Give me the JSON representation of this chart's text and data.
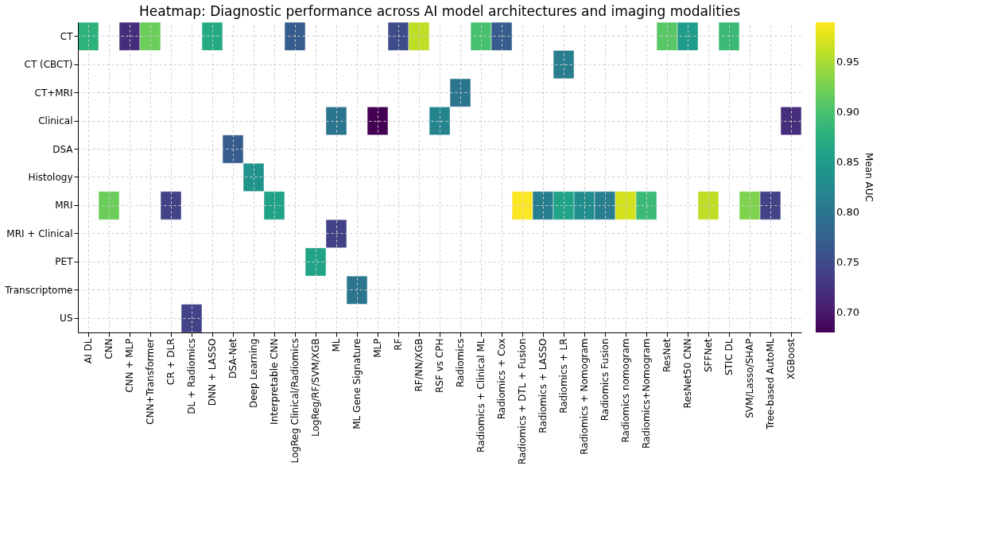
{
  "chart_data": {
    "type": "heatmap",
    "title": "Heatmap: Diagnostic performance across AI model architectures and imaging modalities",
    "clabel": "Mean AUC",
    "clim": [
      0.68,
      0.99
    ],
    "cticks": [
      {
        "value": 0.7,
        "label": "0.70"
      },
      0.75,
      {
        "value": 0.8,
        "label": "0.80"
      },
      0.85,
      {
        "value": 0.9,
        "label": "0.90"
      },
      0.95
    ],
    "grid": true,
    "categories": [
      "AI DL",
      "CNN",
      "CNN + MLP",
      "CNN+Transformer",
      "CR + DLR",
      "DL + Radiomics",
      "DNN + LASSO",
      "DSA-Net",
      "Deep Learning",
      "Interpretable CNN",
      "LogReg Clinical/Radiomics",
      "LogReg/RF/SVM/XGB",
      "ML",
      "ML Gene Signature",
      "MLP",
      "RF",
      "RF/NN/XGB",
      "RSF vs CPH",
      "Radiomics",
      "Radiomics + Clinical ML",
      "Radiomics + Cox",
      "Radiomics + DTL + Fusion",
      "Radiomics + LASSO",
      "Radiomics + LR",
      "Radiomics + Nomogram",
      "Radiomics Fusion",
      "Radiomics nomogram",
      "Radiomics+Nomogram",
      "ResNet",
      "ResNet50 CNN",
      "SFFNet",
      "STIC DL",
      "SVM/Lasso/SHAP",
      "Tree-based AutoML",
      "XGBoost"
    ],
    "y_categories": [
      "CT",
      "CT (CBCT)",
      "CT+MRI",
      "Clinical",
      "DSA",
      "Histology",
      "MRI",
      "MRI + Clinical",
      "PET",
      "Transcriptome",
      "US"
    ],
    "cells": [
      [
        0.88,
        null,
        0.72,
        0.92,
        null,
        null,
        0.87,
        null,
        null,
        null,
        0.77,
        null,
        null,
        null,
        null,
        0.75,
        0.96,
        null,
        null,
        0.9,
        0.77,
        null,
        null,
        null,
        null,
        null,
        null,
        null,
        0.91,
        0.85,
        null,
        0.89,
        null,
        null,
        null
      ],
      [
        null,
        null,
        null,
        null,
        null,
        null,
        null,
        null,
        null,
        null,
        null,
        null,
        null,
        null,
        null,
        null,
        null,
        null,
        null,
        null,
        null,
        null,
        null,
        0.81,
        null,
        null,
        null,
        null,
        null,
        null,
        null,
        null,
        null,
        null,
        null
      ],
      [
        null,
        null,
        null,
        null,
        null,
        null,
        null,
        null,
        null,
        null,
        null,
        null,
        null,
        null,
        null,
        null,
        null,
        null,
        0.8,
        null,
        null,
        null,
        null,
        null,
        null,
        null,
        null,
        null,
        null,
        null,
        null,
        null,
        null,
        null,
        null
      ],
      [
        null,
        null,
        null,
        null,
        null,
        null,
        null,
        null,
        null,
        null,
        null,
        null,
        0.8,
        null,
        0.68,
        null,
        null,
        0.82,
        null,
        null,
        null,
        null,
        null,
        null,
        null,
        null,
        null,
        null,
        null,
        null,
        null,
        null,
        null,
        null,
        0.72
      ],
      [
        null,
        null,
        null,
        null,
        null,
        null,
        null,
        0.77,
        null,
        null,
        null,
        null,
        null,
        null,
        null,
        null,
        null,
        null,
        null,
        null,
        null,
        null,
        null,
        null,
        null,
        null,
        null,
        null,
        null,
        null,
        null,
        null,
        null,
        null,
        null
      ],
      [
        null,
        null,
        null,
        null,
        null,
        null,
        null,
        null,
        0.84,
        null,
        null,
        null,
        null,
        null,
        null,
        null,
        null,
        null,
        null,
        null,
        null,
        null,
        null,
        null,
        null,
        null,
        null,
        null,
        null,
        null,
        null,
        null,
        null,
        null,
        null
      ],
      [
        null,
        0.92,
        null,
        null,
        0.74,
        null,
        null,
        null,
        null,
        0.86,
        null,
        null,
        null,
        null,
        null,
        null,
        null,
        null,
        null,
        null,
        null,
        0.99,
        0.81,
        0.86,
        0.83,
        0.81,
        0.97,
        0.89,
        null,
        null,
        0.96,
        null,
        0.93,
        0.74,
        null
      ],
      [
        null,
        null,
        null,
        null,
        null,
        null,
        null,
        null,
        null,
        null,
        null,
        null,
        0.74,
        null,
        null,
        null,
        null,
        null,
        null,
        null,
        null,
        null,
        null,
        null,
        null,
        null,
        null,
        null,
        null,
        null,
        null,
        null,
        null,
        null,
        null
      ],
      [
        null,
        null,
        null,
        null,
        null,
        null,
        null,
        null,
        null,
        null,
        null,
        0.86,
        null,
        null,
        null,
        null,
        null,
        null,
        null,
        null,
        null,
        null,
        null,
        null,
        null,
        null,
        null,
        null,
        null,
        null,
        null,
        null,
        null,
        null,
        null
      ],
      [
        null,
        null,
        null,
        null,
        null,
        null,
        null,
        null,
        null,
        null,
        null,
        null,
        null,
        0.8,
        null,
        null,
        null,
        null,
        null,
        null,
        null,
        null,
        null,
        null,
        null,
        null,
        null,
        null,
        null,
        null,
        null,
        null,
        null,
        null,
        null
      ],
      [
        null,
        null,
        null,
        null,
        null,
        0.74,
        null,
        null,
        null,
        null,
        null,
        null,
        null,
        null,
        null,
        null,
        null,
        null,
        null,
        null,
        null,
        null,
        null,
        null,
        null,
        null,
        null,
        null,
        null,
        null,
        null,
        null,
        null,
        null,
        null
      ]
    ]
  }
}
